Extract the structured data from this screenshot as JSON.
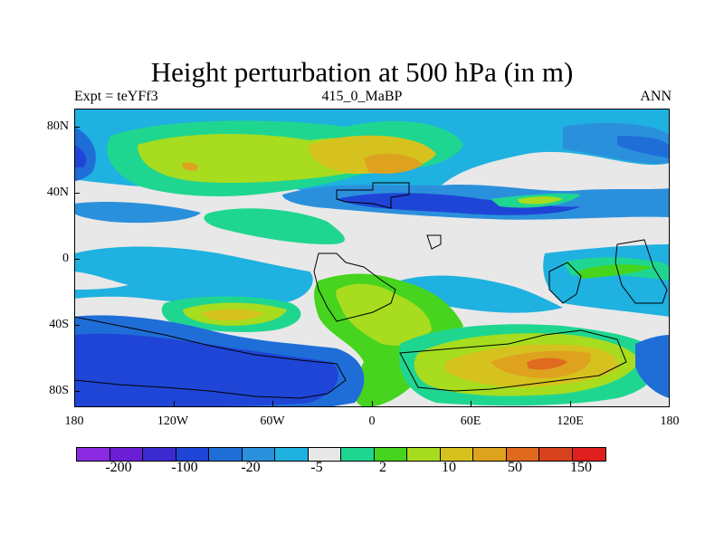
{
  "title": "Height perturbation at 500 hPa (in m)",
  "left_label": "Expt = teYFf3",
  "center_label": "415_0_MaBP",
  "right_label": "ANN",
  "y_ticks": [
    "80N",
    "40N",
    "0",
    "40S",
    "80S"
  ],
  "x_ticks": [
    "180",
    "120W",
    "60W",
    "0",
    "60E",
    "120E",
    "180"
  ],
  "colorbar": {
    "colors": [
      "#8a2be2",
      "#6a1fd6",
      "#3a2ad0",
      "#1f45d6",
      "#1f6ed8",
      "#2b90dc",
      "#1fb1e0",
      "#e8e8e8",
      "#1fd690",
      "#46d41f",
      "#a7dc1f",
      "#d6c21f",
      "#dea21f",
      "#e06a1f",
      "#d8421f",
      "#e01f1f"
    ],
    "labels": [
      "-200",
      "-100",
      "-20",
      "-5",
      "2",
      "10",
      "50",
      "150"
    ]
  },
  "map_colors": {
    "gray": "#e8e8e8",
    "lightblue": "#1fb1e0",
    "midblue": "#2b90dc",
    "blue": "#1f6ed8",
    "darkblue": "#1f45d6",
    "green": "#1fd690",
    "lightgreen": "#46d41f",
    "yellowgreen": "#a7dc1f",
    "yellow": "#d6c21f",
    "orange": "#dea21f",
    "darkorange": "#e06a1f"
  }
}
